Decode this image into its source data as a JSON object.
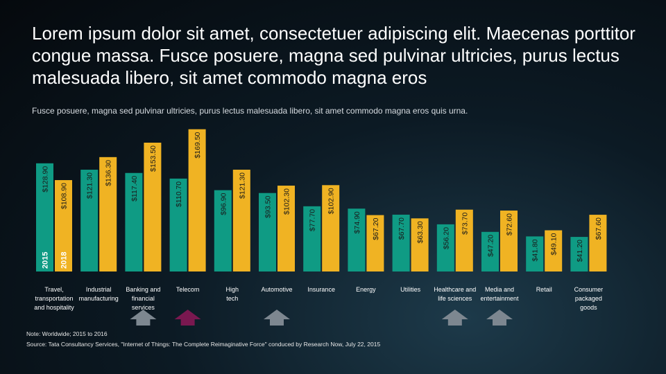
{
  "title": "Lorem ipsum dolor sit amet, consectetuer adipiscing elit. Maecenas porttitor congue massa. Fusce posuere, magna sed pulvinar ultricies, purus lectus malesuada libero, sit amet commodo magna eros",
  "subtitle": "Fusce posuere, magna sed pulvinar ultricies, purus lectus malesuada libero, sit amet commodo magna eros quis urna.",
  "notes": {
    "note": "Note: Worldwide; 2015 to 2016",
    "source": "Source: Tata Consultancy Services, \"Internet of Things: The Complete Reimaginative Force\" conduced by Research Now, July 22, 2015"
  },
  "colors": {
    "series_2015": "#0f9b84",
    "series_2018": "#f0b323",
    "arrow_gray": "#7d8790",
    "arrow_highlight": "#7a1850"
  },
  "chart_data": {
    "type": "bar",
    "title": "",
    "xlabel": "",
    "ylabel": "",
    "ylim": [
      0,
      170
    ],
    "grid": false,
    "legend": "left, rotated inside first bars",
    "categories": [
      "Travel, transportation and hospitality",
      "Industrial manufacturing",
      "Banking and financial services",
      "Telecom",
      "High tech",
      "Automotive",
      "Insurance",
      "Energy",
      "Utilities",
      "Healthcare and life sciences",
      "Media and entertainment",
      "Retail",
      "Consumer packaged goods"
    ],
    "category_lines": [
      [
        "Travel,",
        "transportation",
        "and hospitality"
      ],
      [
        "Industrial",
        "manufacturing"
      ],
      [
        "Banking and",
        "financial",
        "services"
      ],
      [
        "Telecom"
      ],
      [
        "High",
        "tech"
      ],
      [
        "Automotive"
      ],
      [
        "Insurance"
      ],
      [
        "Energy"
      ],
      [
        "Utilities"
      ],
      [
        "Healthcare and",
        "life sciences"
      ],
      [
        "Media and",
        "entertainment"
      ],
      [
        "Retail"
      ],
      [
        "Consumer",
        "packaged",
        "goods"
      ]
    ],
    "series": [
      {
        "name": "2015",
        "values": [
          128.9,
          121.3,
          117.4,
          110.7,
          96.9,
          93.5,
          77.7,
          74.9,
          67.7,
          56.2,
          47.2,
          41.8,
          41.2
        ],
        "labels": [
          "$128.90",
          "$121.30",
          "$117.40",
          "$110.70",
          "$96.90",
          "$93.50",
          "$77.70",
          "$74.90",
          "$67.70",
          "$56.20",
          "$47.20",
          "$41.80",
          "$41.20"
        ]
      },
      {
        "name": "2018",
        "values": [
          108.9,
          136.3,
          153.5,
          169.5,
          121.3,
          102.3,
          102.9,
          67.2,
          63.3,
          73.7,
          72.6,
          49.1,
          67.6
        ],
        "labels": [
          "$108.90",
          "$136.30",
          "$153.50",
          "$169.50",
          "$121.30",
          "$102.30",
          "$102.90",
          "$67.20",
          "$63.30",
          "$73.70",
          "$72.60",
          "$49.10",
          "$67.60"
        ]
      }
    ],
    "arrows": [
      {
        "category": "Banking and financial services",
        "style": "gray"
      },
      {
        "category": "Telecom",
        "style": "highlight"
      },
      {
        "category": "Automotive",
        "style": "gray"
      },
      {
        "category": "Healthcare and life sciences",
        "style": "gray"
      },
      {
        "category": "Media and entertainment",
        "style": "gray"
      }
    ]
  }
}
